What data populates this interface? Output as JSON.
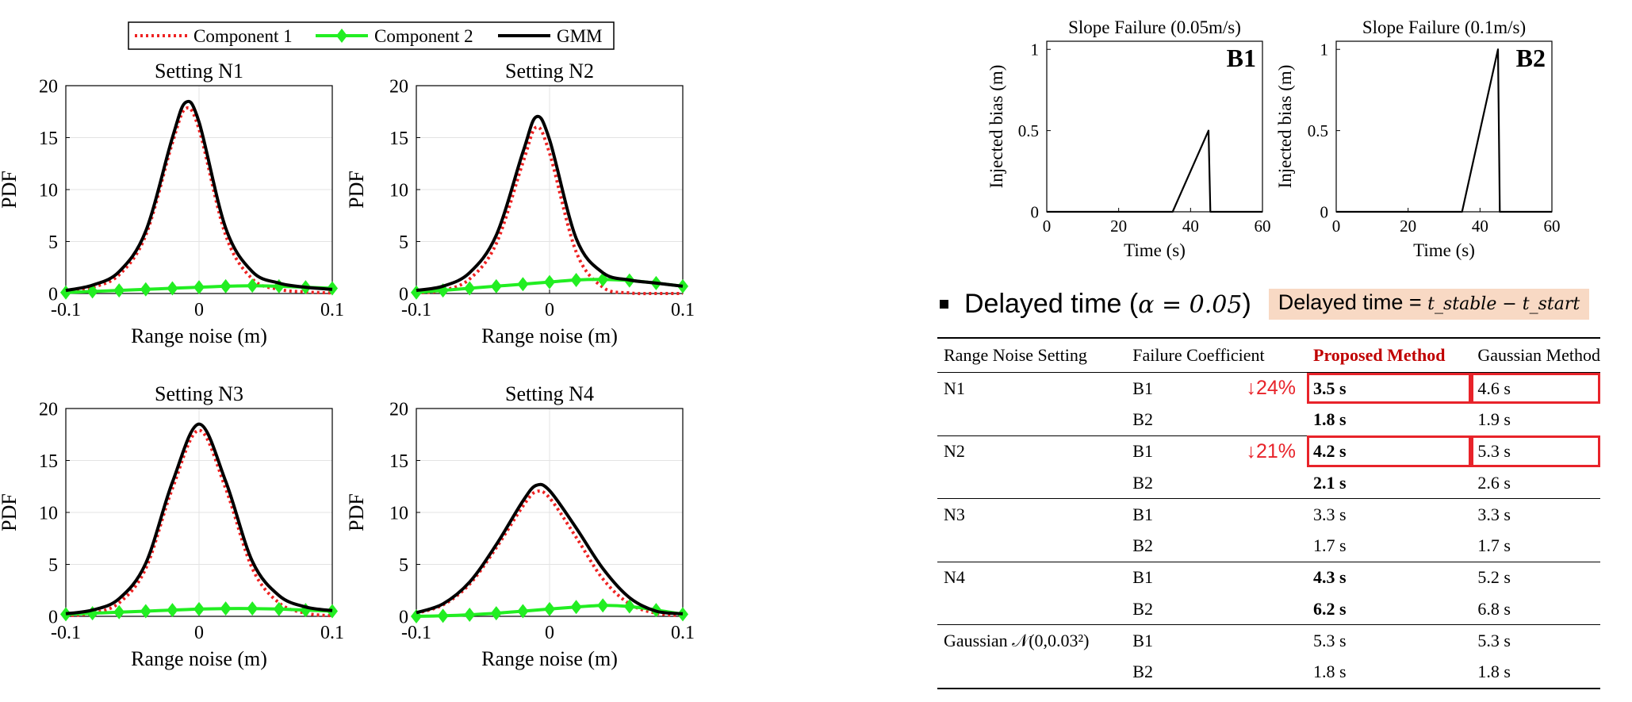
{
  "legend": {
    "items": [
      {
        "label": "Component 1",
        "color": "#ee2222",
        "style": "dotted"
      },
      {
        "label": "Component 2",
        "color": "#22ee22",
        "style": "diamond"
      },
      {
        "label": "GMM",
        "color": "#000000",
        "style": "solid"
      }
    ]
  },
  "chart_data": [
    {
      "type": "line",
      "title": "Setting N1",
      "xlabel": "Range noise (m)",
      "ylabel": "PDF",
      "xlim": [
        -0.1,
        0.1
      ],
      "ylim": [
        0,
        20
      ],
      "xticks": [
        "-0.1",
        "0",
        "0.1"
      ],
      "yticks": [
        "0",
        "5",
        "10",
        "15",
        "20"
      ],
      "grid": true,
      "series": [
        {
          "name": "Component 1",
          "x": [
            -0.1,
            -0.08,
            -0.06,
            -0.04,
            -0.02,
            -0.01,
            0,
            0.02,
            0.04,
            0.06,
            0.08,
            0.1
          ],
          "values": [
            0.2,
            0.6,
            1.8,
            5.6,
            14.5,
            17.8,
            15.8,
            5.6,
            1.4,
            0.4,
            0.15,
            0.05
          ]
        },
        {
          "name": "Component 2",
          "x": [
            -0.1,
            -0.08,
            -0.06,
            -0.04,
            -0.02,
            0,
            0.02,
            0.04,
            0.06,
            0.08,
            0.1
          ],
          "values": [
            0.1,
            0.2,
            0.3,
            0.4,
            0.5,
            0.6,
            0.7,
            0.75,
            0.7,
            0.6,
            0.5
          ]
        },
        {
          "name": "GMM",
          "x": [
            -0.1,
            -0.08,
            -0.06,
            -0.04,
            -0.02,
            -0.01,
            0,
            0.02,
            0.04,
            0.06,
            0.08,
            0.1
          ],
          "values": [
            0.3,
            0.8,
            2.1,
            6.0,
            15.0,
            18.4,
            16.5,
            6.3,
            2.1,
            1.0,
            0.6,
            0.4
          ]
        }
      ]
    },
    {
      "type": "line",
      "title": "Setting N2",
      "xlabel": "Range noise (m)",
      "ylabel": "PDF",
      "xlim": [
        -0.1,
        0.1
      ],
      "ylim": [
        0,
        20
      ],
      "xticks": [
        "-0.1",
        "0",
        "0.1"
      ],
      "yticks": [
        "0",
        "5",
        "10",
        "15",
        "20"
      ],
      "grid": true,
      "series": [
        {
          "name": "Component 1",
          "x": [
            -0.1,
            -0.08,
            -0.06,
            -0.04,
            -0.02,
            -0.01,
            0,
            0.02,
            0.04,
            0.06,
            0.08,
            0.1
          ],
          "values": [
            0.05,
            0.3,
            1.4,
            4.8,
            12.6,
            16.0,
            13.5,
            4.0,
            0.6,
            0.05,
            0,
            0
          ]
        },
        {
          "name": "Component 2",
          "x": [
            -0.1,
            -0.08,
            -0.06,
            -0.04,
            -0.02,
            0,
            0.02,
            0.04,
            0.06,
            0.08,
            0.1
          ],
          "values": [
            0.1,
            0.3,
            0.5,
            0.7,
            0.9,
            1.1,
            1.3,
            1.35,
            1.25,
            1.0,
            0.7
          ]
        },
        {
          "name": "GMM",
          "x": [
            -0.1,
            -0.08,
            -0.06,
            -0.04,
            -0.02,
            -0.01,
            0,
            0.02,
            0.04,
            0.06,
            0.08,
            0.1
          ],
          "values": [
            0.3,
            0.7,
            2.0,
            5.6,
            13.6,
            17.0,
            14.8,
            5.3,
            2.0,
            1.3,
            1.0,
            0.7
          ]
        }
      ]
    },
    {
      "type": "line",
      "title": "Setting N3",
      "xlabel": "Range noise (m)",
      "ylabel": "PDF",
      "xlim": [
        -0.1,
        0.1
      ],
      "ylim": [
        0,
        20
      ],
      "xticks": [
        "-0.1",
        "0",
        "0.1"
      ],
      "yticks": [
        "0",
        "5",
        "10",
        "15",
        "20"
      ],
      "grid": true,
      "series": [
        {
          "name": "Component 1",
          "x": [
            -0.1,
            -0.08,
            -0.06,
            -0.04,
            -0.02,
            0,
            0.02,
            0.04,
            0.06,
            0.08,
            0.1
          ],
          "values": [
            0.05,
            0.3,
            1.3,
            4.6,
            12.3,
            17.9,
            12.3,
            4.6,
            1.3,
            0.3,
            0.05
          ]
        },
        {
          "name": "Component 2",
          "x": [
            -0.1,
            -0.08,
            -0.06,
            -0.04,
            -0.02,
            0,
            0.02,
            0.04,
            0.06,
            0.08,
            0.1
          ],
          "values": [
            0.2,
            0.3,
            0.4,
            0.5,
            0.6,
            0.7,
            0.75,
            0.75,
            0.7,
            0.6,
            0.5
          ]
        },
        {
          "name": "GMM",
          "x": [
            -0.1,
            -0.08,
            -0.06,
            -0.04,
            -0.02,
            0,
            0.02,
            0.04,
            0.06,
            0.08,
            0.1
          ],
          "values": [
            0.25,
            0.6,
            1.7,
            5.1,
            12.9,
            18.5,
            13.0,
            5.3,
            2.0,
            0.9,
            0.55
          ]
        }
      ]
    },
    {
      "type": "line",
      "title": "Setting N4",
      "xlabel": "Range noise (m)",
      "ylabel": "PDF",
      "xlim": [
        -0.1,
        0.1
      ],
      "ylim": [
        0,
        20
      ],
      "xticks": [
        "-0.1",
        "0",
        "0.1"
      ],
      "yticks": [
        "0",
        "5",
        "10",
        "15",
        "20"
      ],
      "grid": true,
      "series": [
        {
          "name": "Component 1",
          "x": [
            -0.1,
            -0.08,
            -0.06,
            -0.04,
            -0.02,
            -0.01,
            0,
            0.02,
            0.04,
            0.06,
            0.08,
            0.1
          ],
          "values": [
            0.3,
            1.1,
            3.1,
            6.6,
            10.6,
            12.0,
            11.4,
            7.6,
            3.6,
            1.2,
            0.3,
            0.05
          ]
        },
        {
          "name": "Component 2",
          "x": [
            -0.1,
            -0.08,
            -0.06,
            -0.04,
            -0.02,
            0,
            0.02,
            0.04,
            0.06,
            0.08,
            0.1
          ],
          "values": [
            0.0,
            0.05,
            0.15,
            0.3,
            0.5,
            0.7,
            0.9,
            1.05,
            0.95,
            0.6,
            0.2
          ]
        },
        {
          "name": "GMM",
          "x": [
            -0.1,
            -0.08,
            -0.06,
            -0.04,
            -0.02,
            -0.01,
            0,
            0.02,
            0.04,
            0.06,
            0.08,
            0.1
          ],
          "values": [
            0.35,
            1.2,
            3.3,
            6.9,
            11.1,
            12.6,
            12.1,
            8.5,
            4.6,
            1.8,
            0.5,
            0.25
          ]
        }
      ]
    },
    {
      "type": "line",
      "title": "Slope Failure (0.05m/s)",
      "panel_label": "B1",
      "xlabel": "Time (s)",
      "ylabel": "Injected bias (m)",
      "xlim": [
        0,
        60
      ],
      "ylim": [
        0,
        1.05
      ],
      "xticks": [
        "0",
        "20",
        "40",
        "60"
      ],
      "yticks": [
        "0",
        "0.5",
        "1"
      ],
      "grid": false,
      "series": [
        {
          "x": [
            0,
            35,
            45,
            45.5,
            60
          ],
          "values": [
            0,
            0,
            0.5,
            0,
            0
          ]
        }
      ]
    },
    {
      "type": "line",
      "title": "Slope Failure (0.1m/s)",
      "panel_label": "B2",
      "xlabel": "Time (s)",
      "ylabel": "Injected bias (m)",
      "xlim": [
        0,
        60
      ],
      "ylim": [
        0,
        1.05
      ],
      "xticks": [
        "0",
        "20",
        "40",
        "60"
      ],
      "yticks": [
        "0",
        "0.5",
        "1"
      ],
      "grid": false,
      "series": [
        {
          "x": [
            0,
            35,
            45,
            45.5,
            60
          ],
          "values": [
            0,
            0,
            1.0,
            0,
            0
          ]
        }
      ]
    }
  ],
  "delay_section": {
    "bullet_prefix": "Delayed time (",
    "bullet_alpha": "α = 0.05",
    "bullet_suffix": ")",
    "formula_prefix": "Delayed time = ",
    "formula_expr": "t_stable − t_start"
  },
  "table": {
    "headers": [
      "Range Noise Setting",
      "Failure Coefficient",
      "",
      "Proposed Method",
      "Gaussian Method"
    ],
    "rows": [
      {
        "setting": "N1",
        "coef": "B1",
        "reduction": "↓24%",
        "proposed": "3.5 s",
        "gaussian": "4.6 s"
      },
      {
        "setting": "",
        "coef": "B2",
        "reduction": "",
        "proposed": "1.8 s",
        "gaussian": "1.9 s"
      },
      {
        "setting": "N2",
        "coef": "B1",
        "reduction": "↓21%",
        "proposed": "4.2 s",
        "gaussian": "5.3 s"
      },
      {
        "setting": "",
        "coef": "B2",
        "reduction": "",
        "proposed": "2.1 s",
        "gaussian": "2.6 s"
      },
      {
        "setting": "N3",
        "coef": "B1",
        "reduction": "",
        "proposed": "3.3 s",
        "gaussian": "3.3 s"
      },
      {
        "setting": "",
        "coef": "B2",
        "reduction": "",
        "proposed": "1.7 s",
        "gaussian": "1.7 s"
      },
      {
        "setting": "N4",
        "coef": "B1",
        "reduction": "",
        "proposed": "4.3 s",
        "gaussian": "5.2 s"
      },
      {
        "setting": "",
        "coef": "B2",
        "reduction": "",
        "proposed": "6.2 s",
        "gaussian": "6.8 s"
      },
      {
        "setting": "Gaussian 𝒩(0,0.03²)",
        "coef": "B1",
        "reduction": "",
        "proposed": "5.3 s",
        "gaussian": "5.3 s"
      },
      {
        "setting": "",
        "coef": "B2",
        "reduction": "",
        "proposed": "1.8 s",
        "gaussian": "1.8 s"
      }
    ]
  }
}
